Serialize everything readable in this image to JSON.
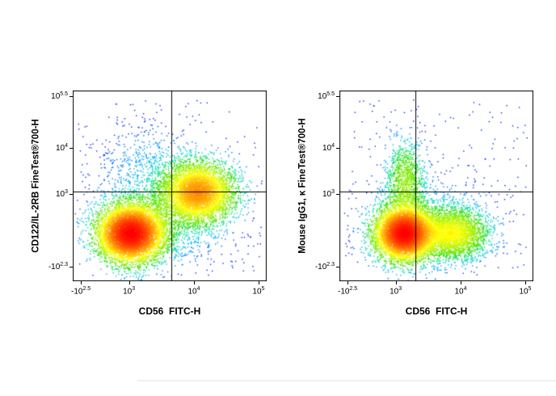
{
  "figure": {
    "background": "#ffffff",
    "description": "Two flow cytometry pseudocolor density dot plots with quadrant gates"
  },
  "chart_data": {
    "type": "scatter",
    "subtype": "flow-cytometry-density-dot-plot",
    "grid": false,
    "legend": false,
    "density_colormap": [
      {
        "t": 0.0,
        "c": "#0030f0"
      },
      {
        "t": 0.15,
        "c": "#0070ff"
      },
      {
        "t": 0.3,
        "c": "#00b4ff"
      },
      {
        "t": 0.45,
        "c": "#00e0a0"
      },
      {
        "t": 0.57,
        "c": "#2ee000"
      },
      {
        "t": 0.68,
        "c": "#a0f000"
      },
      {
        "t": 0.78,
        "c": "#ffff00"
      },
      {
        "t": 0.88,
        "c": "#ff9000"
      },
      {
        "t": 1.0,
        "c": "#ff0000"
      }
    ],
    "plots": [
      {
        "y_title": "CD122/IL-2RB FineTest®700-H",
        "x_title": "CD56  FITC-H",
        "x_ticks": [
          {
            "base": "-10",
            "exp": "2.5",
            "pos": 0.042
          },
          {
            "base": "10",
            "exp": "3",
            "pos": 0.29
          },
          {
            "base": "10",
            "exp": "4",
            "pos": 0.625
          },
          {
            "base": "10",
            "exp": "5",
            "pos": 0.958
          }
        ],
        "y_ticks": [
          {
            "base": "10",
            "exp": "5.5",
            "pos": 0.97
          },
          {
            "base": "10",
            "exp": "4",
            "pos": 0.7
          },
          {
            "base": "10",
            "exp": "3",
            "pos": 0.458
          },
          {
            "base": "-10",
            "exp": "2.3",
            "pos": 0.076
          }
        ],
        "quadrant": {
          "x": 0.508,
          "y": 0.47
        },
        "seed": 12345,
        "uniform_n": 220,
        "clusters": [
          {
            "cx": 0.3,
            "cy": 0.25,
            "sx": 0.085,
            "sy": 0.075,
            "n": 7000,
            "w": 1.0
          },
          {
            "cx": 0.645,
            "cy": 0.465,
            "sx": 0.095,
            "sy": 0.08,
            "n": 4500,
            "w": 0.45
          },
          {
            "cx": 0.47,
            "cy": 0.34,
            "sx": 0.17,
            "sy": 0.13,
            "n": 1600,
            "w": 0.015
          },
          {
            "cx": 0.4,
            "cy": 0.62,
            "sx": 0.13,
            "sy": 0.11,
            "n": 450,
            "w": 0.006
          }
        ]
      },
      {
        "y_title": "Mouse IgG1, κ FineTest®700-H",
        "x_title": "CD56  FITC-H",
        "x_ticks": [
          {
            "base": "-10",
            "exp": "2.5",
            "pos": 0.042
          },
          {
            "base": "10",
            "exp": "3",
            "pos": 0.29
          },
          {
            "base": "10",
            "exp": "4",
            "pos": 0.625
          },
          {
            "base": "10",
            "exp": "5",
            "pos": 0.958
          }
        ],
        "y_ticks": [
          {
            "base": "10",
            "exp": "5.5",
            "pos": 0.97
          },
          {
            "base": "10",
            "exp": "4",
            "pos": 0.7
          },
          {
            "base": "10",
            "exp": "3",
            "pos": 0.458
          },
          {
            "base": "-10",
            "exp": "2.3",
            "pos": 0.076
          }
        ],
        "quadrant": {
          "x": 0.39,
          "y": 0.47
        },
        "seed": 98765,
        "uniform_n": 220,
        "clusters": [
          {
            "cx": 0.335,
            "cy": 0.25,
            "sx": 0.075,
            "sy": 0.07,
            "n": 6500,
            "w": 1.0
          },
          {
            "cx": 0.585,
            "cy": 0.25,
            "sx": 0.09,
            "sy": 0.065,
            "n": 2800,
            "w": 0.22
          },
          {
            "cx": 0.34,
            "cy": 0.52,
            "sx": 0.05,
            "sy": 0.11,
            "n": 1100,
            "w": 0.1
          },
          {
            "cx": 0.46,
            "cy": 0.3,
            "sx": 0.16,
            "sy": 0.12,
            "n": 1100,
            "w": 0.012
          }
        ]
      }
    ]
  }
}
